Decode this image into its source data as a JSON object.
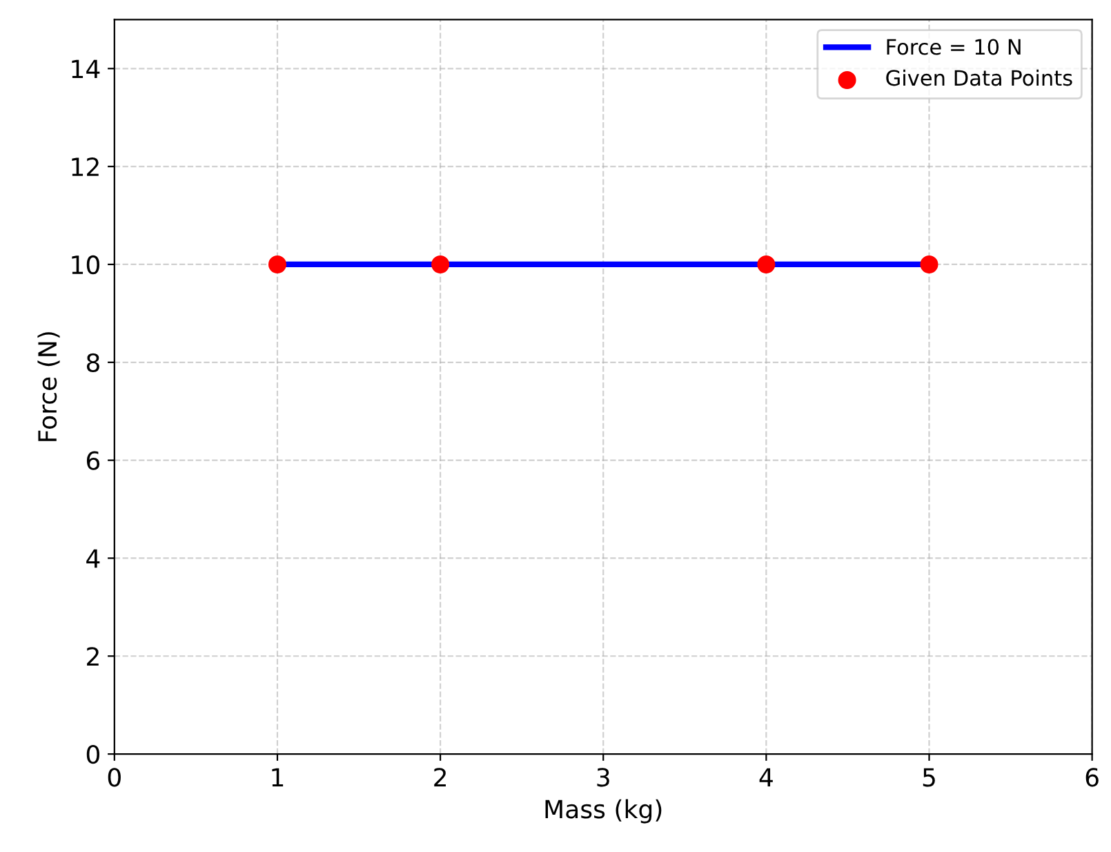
{
  "chart_data": {
    "type": "line",
    "xlabel": "Mass (kg)",
    "ylabel": "Force (N)",
    "xlim": [
      0,
      6
    ],
    "xticks": [
      0,
      1,
      2,
      3,
      4,
      5,
      6
    ],
    "ylim": [
      0,
      15
    ],
    "yticks": [
      0,
      2,
      4,
      6,
      8,
      10,
      12,
      14
    ],
    "grid": true,
    "legend": "top right",
    "series": [
      {
        "name": "Force = 10 N",
        "color": "#0000ff",
        "x": [
          1,
          5
        ],
        "values": [
          10,
          10
        ],
        "line_style": "solid",
        "marker": "none"
      },
      {
        "name": "Given Data Points",
        "type": "scatter",
        "color": "#ff0000",
        "x": [
          1,
          2,
          4,
          5
        ],
        "values": [
          10,
          10,
          10,
          10
        ],
        "marker": "circle"
      }
    ]
  }
}
